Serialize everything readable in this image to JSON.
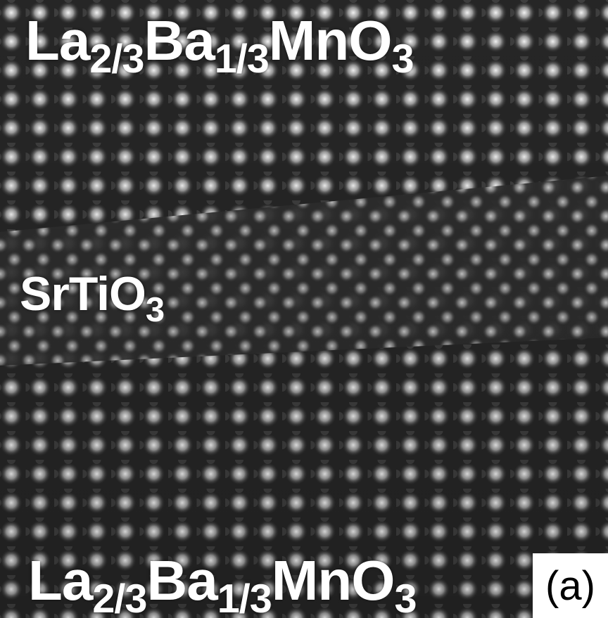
{
  "top_label": [
    {
      "text": "La"
    },
    {
      "text": "2/3",
      "sub": true
    },
    {
      "text": "Ba"
    },
    {
      "text": "1/3",
      "sub": true
    },
    {
      "text": "MnO"
    },
    {
      "text": "3",
      "sub": true
    }
  ],
  "middle_label": [
    {
      "text": "SrTiO"
    },
    {
      "text": "3",
      "sub": true
    }
  ],
  "bottom_label": [
    {
      "text": "La"
    },
    {
      "text": "2/3",
      "sub": true
    },
    {
      "text": "Ba"
    },
    {
      "text": "1/3",
      "sub": true
    },
    {
      "text": "MnO"
    },
    {
      "text": "3",
      "sub": true
    }
  ],
  "panel_label": "(a)"
}
